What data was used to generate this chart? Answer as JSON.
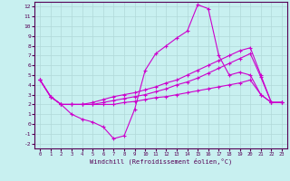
{
  "xlabel": "Windchill (Refroidissement éolien,°C)",
  "bg_color": "#c8f0f0",
  "grid_color": "#b0d8d8",
  "line_color": "#cc00cc",
  "x_ticks": [
    0,
    1,
    2,
    3,
    4,
    5,
    6,
    7,
    8,
    9,
    10,
    11,
    12,
    13,
    14,
    15,
    16,
    17,
    18,
    19,
    20,
    21,
    22,
    23
  ],
  "y_ticks": [
    -2,
    -1,
    0,
    1,
    2,
    3,
    4,
    5,
    6,
    7,
    8,
    9,
    10,
    11,
    12
  ],
  "xlim": [
    -0.5,
    23.5
  ],
  "ylim": [
    -2.5,
    12.5
  ],
  "line1_x": [
    0,
    1,
    2,
    3,
    4,
    5,
    6,
    7,
    8,
    9,
    10,
    11,
    12,
    13,
    14,
    15,
    16,
    17,
    18,
    19,
    20,
    21,
    22,
    23
  ],
  "line1_y": [
    4.5,
    2.8,
    2.0,
    1.0,
    0.5,
    0.2,
    -0.3,
    -1.5,
    -1.2,
    1.5,
    5.5,
    7.2,
    8.0,
    8.8,
    9.5,
    12.2,
    11.8,
    7.0,
    5.0,
    5.3,
    5.0,
    3.0,
    2.2,
    2.2
  ],
  "line2_x": [
    0,
    1,
    2,
    3,
    4,
    5,
    6,
    7,
    8,
    9,
    10,
    11,
    12,
    13,
    14,
    15,
    16,
    17,
    18,
    19,
    20,
    21,
    22,
    23
  ],
  "line2_y": [
    4.5,
    2.8,
    2.0,
    2.0,
    2.0,
    2.0,
    2.0,
    2.0,
    2.2,
    2.3,
    2.5,
    2.7,
    2.8,
    3.0,
    3.2,
    3.4,
    3.6,
    3.8,
    4.0,
    4.2,
    4.5,
    3.0,
    2.2,
    2.2
  ],
  "line3_x": [
    0,
    1,
    2,
    3,
    4,
    5,
    6,
    7,
    8,
    9,
    10,
    11,
    12,
    13,
    14,
    15,
    16,
    17,
    18,
    19,
    20,
    21,
    22,
    23
  ],
  "line3_y": [
    4.5,
    2.8,
    2.0,
    2.0,
    2.0,
    2.2,
    2.5,
    2.8,
    3.0,
    3.2,
    3.5,
    3.8,
    4.2,
    4.5,
    5.0,
    5.5,
    6.0,
    6.5,
    7.0,
    7.5,
    7.8,
    5.0,
    2.2,
    2.2
  ],
  "line4_x": [
    0,
    1,
    2,
    3,
    4,
    5,
    6,
    7,
    8,
    9,
    10,
    11,
    12,
    13,
    14,
    15,
    16,
    17,
    18,
    19,
    20,
    21,
    22,
    23
  ],
  "line4_y": [
    4.5,
    2.8,
    2.0,
    2.0,
    2.0,
    2.0,
    2.2,
    2.4,
    2.6,
    2.8,
    3.0,
    3.3,
    3.6,
    4.0,
    4.3,
    4.7,
    5.2,
    5.7,
    6.2,
    6.7,
    7.2,
    4.8,
    2.2,
    2.2
  ]
}
